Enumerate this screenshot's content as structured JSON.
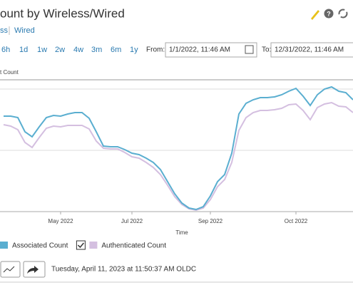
{
  "header": {
    "title": "ount by Wireless/Wired"
  },
  "tabs": [
    "ss",
    "Wired"
  ],
  "ranges": [
    "6h",
    "1d",
    "1w",
    "2w",
    "4w",
    "3m",
    "6m",
    "1y"
  ],
  "from_label": "From:",
  "from_value": "1/1/2022, 11:46 AM",
  "to_label": "To:",
  "to_value": "12/31/2022, 11:46 AM",
  "chart_data": {
    "type": "line",
    "y_label": "t Count",
    "x_label": "Time",
    "categories": [
      null,
      null,
      null,
      null,
      null,
      null,
      null,
      null,
      "May 2022",
      null,
      null,
      null,
      null,
      null,
      null,
      null,
      null,
      null,
      "Jul 2022",
      null,
      null,
      null,
      null,
      null,
      null,
      null,
      null,
      null,
      null,
      "Sep 2022",
      null,
      null,
      null,
      null,
      null,
      null,
      null,
      null,
      null,
      null,
      null,
      "Oct 2022",
      null,
      null,
      null,
      null,
      null,
      null,
      null,
      null
    ],
    "series": [
      {
        "name": "Associated Count",
        "color": "#5aaed0",
        "values": [
          134,
          134,
          132,
          112,
          105,
          119,
          132,
          135,
          134,
          137,
          139,
          139,
          131,
          112,
          92,
          91,
          91,
          87,
          82,
          80,
          75,
          69,
          59,
          42,
          25,
          12,
          5,
          3,
          7,
          22,
          42,
          52,
          82,
          137,
          152,
          157,
          160,
          160,
          161,
          164,
          169,
          173,
          162,
          149,
          164,
          172,
          175,
          169,
          167,
          157
        ]
      },
      {
        "name": "Authenticated Count",
        "color": "#d4bfe0",
        "values": [
          122,
          120,
          115,
          97,
          90,
          104,
          117,
          120,
          119,
          121,
          121,
          121,
          116,
          99,
          89,
          88,
          88,
          83,
          77,
          75,
          69,
          62,
          52,
          37,
          21,
          10,
          4,
          2,
          5,
          17,
          35,
          45,
          69,
          114,
          132,
          139,
          142,
          142,
          143,
          145,
          150,
          151,
          142,
          129,
          146,
          151,
          153,
          148,
          147,
          139
        ]
      }
    ],
    "ylim": [
      0,
      180
    ]
  },
  "footer": {
    "timestamp": "Tuesday, April 11, 2023 at 11:50:37 AM OLDC"
  }
}
